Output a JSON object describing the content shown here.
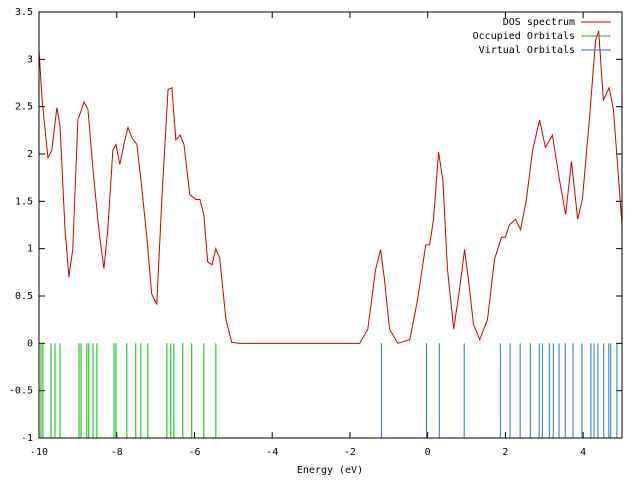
{
  "chart_data": {
    "type": "line",
    "xlabel": "Energy (eV)",
    "xlim": [
      -10,
      5
    ],
    "ylim": [
      -1,
      3.5
    ],
    "xticks": [
      -10,
      -8,
      -6,
      -4,
      -2,
      0,
      2,
      4
    ],
    "yticks": [
      -1,
      -0.5,
      0,
      0.5,
      1,
      1.5,
      2,
      2.5,
      3,
      3.5
    ],
    "legend": "upper right",
    "series": [
      {
        "name": "DOS spectrum",
        "color": "#cc0000",
        "type": "line",
        "x": [
          -10,
          -9.92,
          -9.77,
          -9.67,
          -9.54,
          -9.46,
          -9.33,
          -9.23,
          -9.13,
          -9.0,
          -8.84,
          -8.74,
          -8.61,
          -8.46,
          -8.33,
          -8.23,
          -8.1,
          -8.02,
          -7.92,
          -7.79,
          -7.71,
          -7.61,
          -7.48,
          -7.35,
          -7.22,
          -7.1,
          -6.97,
          -6.84,
          -6.68,
          -6.58,
          -6.48,
          -6.37,
          -6.27,
          -6.12,
          -5.96,
          -5.86,
          -5.76,
          -5.66,
          -5.55,
          -5.45,
          -5.35,
          -5.19,
          -5.04,
          -4.83,
          -1.75,
          -1.54,
          -1.34,
          -1.21,
          -1.11,
          -0.98,
          -0.77,
          -0.46,
          -0.26,
          -0.05,
          0.05,
          0.15,
          0.28,
          0.39,
          0.51,
          0.67,
          0.82,
          0.95,
          1.05,
          1.18,
          1.34,
          1.54,
          1.72,
          1.9,
          2.0,
          2.1,
          2.26,
          2.39,
          2.54,
          2.7,
          2.88,
          3.03,
          3.21,
          3.39,
          3.55,
          3.7,
          3.86,
          3.98,
          4.16,
          4.32,
          4.4,
          4.52,
          4.67,
          4.78,
          5.0
        ],
        "values": [
          3.1,
          2.57,
          1.96,
          2.04,
          2.49,
          2.3,
          1.2,
          0.7,
          1.0,
          2.36,
          2.55,
          2.47,
          1.83,
          1.2,
          0.79,
          1.2,
          2.04,
          2.1,
          1.89,
          2.15,
          2.28,
          2.17,
          2.1,
          1.62,
          1.1,
          0.52,
          0.41,
          1.52,
          2.68,
          2.7,
          2.15,
          2.2,
          2.1,
          1.57,
          1.52,
          1.52,
          1.36,
          0.86,
          0.83,
          1.0,
          0.9,
          0.25,
          0.01,
          0,
          0,
          0.15,
          0.78,
          0.99,
          0.67,
          0.15,
          0,
          0.04,
          0.46,
          1.04,
          1.04,
          1.31,
          2.02,
          1.73,
          0.78,
          0.15,
          0.57,
          0.99,
          0.67,
          0.2,
          0.04,
          0.25,
          0.89,
          1.12,
          1.12,
          1.25,
          1.31,
          1.2,
          1.52,
          2.04,
          2.36,
          2.07,
          2.2,
          1.73,
          1.36,
          1.92,
          1.31,
          1.52,
          2.36,
          3.2,
          3.3,
          2.57,
          2.7,
          2.47,
          1.25
        ]
      },
      {
        "name": "Occupied Orbitals",
        "color": "#00bb00",
        "type": "impulse",
        "x": [
          -9.95,
          -9.9,
          -9.69,
          -9.59,
          -9.46,
          -8.97,
          -8.92,
          -8.77,
          -8.72,
          -8.61,
          -8.51,
          -8.07,
          -8.02,
          -7.74,
          -7.51,
          -7.38,
          -7.2,
          -6.71,
          -6.61,
          -6.53,
          -6.3,
          -6.07,
          -5.76,
          -5.45
        ],
        "values": [
          0,
          0,
          0,
          0,
          0,
          0,
          0,
          0,
          0,
          0,
          0,
          0,
          0,
          0,
          0,
          0,
          0,
          0,
          0,
          0,
          0,
          0,
          0,
          0
        ]
      },
      {
        "name": "Virtual Orbitals",
        "color": "#1f77d0",
        "type": "impulse",
        "x": [
          -1.19,
          -0.03,
          0.3,
          0.94,
          1.87,
          2.12,
          2.38,
          2.64,
          2.87,
          2.95,
          3.13,
          3.23,
          3.38,
          3.54,
          3.74,
          3.97,
          4.2,
          4.28,
          4.38,
          4.53,
          4.66,
          4.71,
          4.87
        ],
        "values": [
          0,
          0,
          0,
          0,
          0,
          0,
          0,
          0,
          0,
          0,
          0,
          0,
          0,
          0,
          0,
          0,
          0,
          0,
          0,
          0,
          0,
          0,
          0
        ]
      }
    ]
  }
}
